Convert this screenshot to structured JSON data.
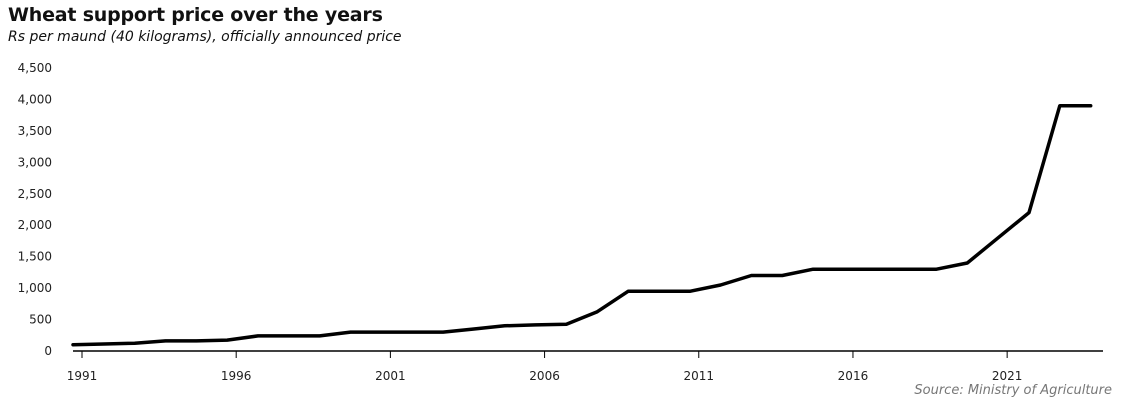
{
  "chart_data": {
    "type": "line",
    "title": "Wheat support price over the years",
    "subtitle": "Rs per maund (40 kilograms), officially announced price",
    "source": "Source: Ministry of Agriculture",
    "xlabel": "",
    "ylabel": "",
    "ylim": [
      0,
      4500
    ],
    "yticks": [
      0,
      500,
      1000,
      1500,
      2000,
      2500,
      3000,
      3500,
      4000,
      4500
    ],
    "ytick_labels": [
      "0",
      "500",
      "1,000",
      "1,500",
      "2,000",
      "2,500",
      "3,000",
      "3,500",
      "4,000",
      "4,500"
    ],
    "xlim": [
      1991,
      2024.4
    ],
    "xticks": [
      1991,
      1996,
      2001,
      2006,
      2011,
      2016,
      2021
    ],
    "xtick_labels": [
      "1991",
      "1996",
      "2001",
      "2006",
      "2011",
      "2016",
      "2021"
    ],
    "grid": false,
    "series": [
      {
        "color": "#000000",
        "x": [
          1991,
          1992,
          1993,
          1994,
          1995,
          1996,
          1997,
          1998,
          1999,
          2000,
          2001,
          2002,
          2003,
          2004,
          2005,
          2006,
          2007,
          2008,
          2009,
          2010,
          2011,
          2012,
          2013,
          2014,
          2015,
          2016,
          2017,
          2018,
          2019,
          2020,
          2021,
          2022,
          2023,
          2024
        ],
        "y": [
          100,
          112,
          124,
          160,
          160,
          173,
          240,
          240,
          240,
          300,
          300,
          300,
          300,
          350,
          400,
          415,
          425,
          625,
          950,
          950,
          950,
          1050,
          1200,
          1200,
          1300,
          1300,
          1300,
          1300,
          1300,
          1400,
          1800,
          2200,
          3900,
          3900
        ]
      }
    ]
  }
}
